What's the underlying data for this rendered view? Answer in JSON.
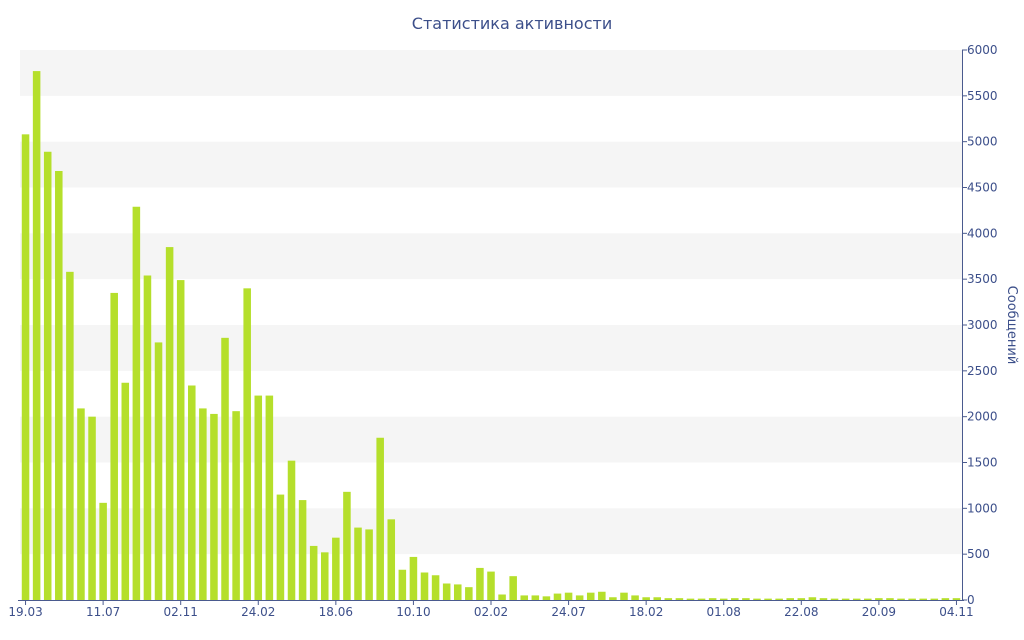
{
  "chart_data": {
    "type": "bar",
    "title": "Статистика активности",
    "xlabel": "",
    "ylabel": "Сообщений",
    "ylim": [
      0,
      6000
    ],
    "yticks": [
      0,
      500,
      1000,
      1500,
      2000,
      2500,
      3000,
      3500,
      4000,
      4500,
      5000,
      5500,
      6000
    ],
    "y_axis_side": "right",
    "grid": "alternating horizontal bands",
    "x_tick_labels": [
      "19.03",
      "11.07",
      "02.11",
      "24.02",
      "18.06",
      "10.10",
      "02.02",
      "24.07",
      "18.02",
      "01.08",
      "22.08",
      "20.09",
      "04.11"
    ],
    "x_tick_positions": [
      0,
      7,
      14,
      21,
      28,
      35,
      42,
      49,
      56,
      63,
      70,
      77,
      84
    ],
    "values": [
      5080,
      5770,
      4890,
      4680,
      3580,
      2090,
      2000,
      1060,
      3350,
      2370,
      4290,
      3540,
      2810,
      3850,
      3490,
      2340,
      2090,
      2030,
      2860,
      2060,
      3400,
      2230,
      2230,
      1150,
      1520,
      1090,
      590,
      520,
      680,
      1180,
      790,
      770,
      1770,
      880,
      330,
      470,
      300,
      270,
      180,
      170,
      140,
      350,
      310,
      60,
      260,
      50,
      50,
      40,
      70,
      80,
      50,
      80,
      90,
      30,
      80,
      50,
      30,
      30,
      20,
      20,
      15,
      15,
      20,
      15,
      20,
      20,
      15,
      15,
      15,
      20,
      20,
      30,
      20,
      15,
      15,
      15,
      15,
      20,
      20,
      15,
      15,
      15,
      15,
      20,
      20
    ],
    "colors": {
      "bar": "#b5df2b",
      "axis_text": "#3c4f8a",
      "band": "#f5f5f5",
      "axis_line": "#4a5a8e"
    }
  }
}
